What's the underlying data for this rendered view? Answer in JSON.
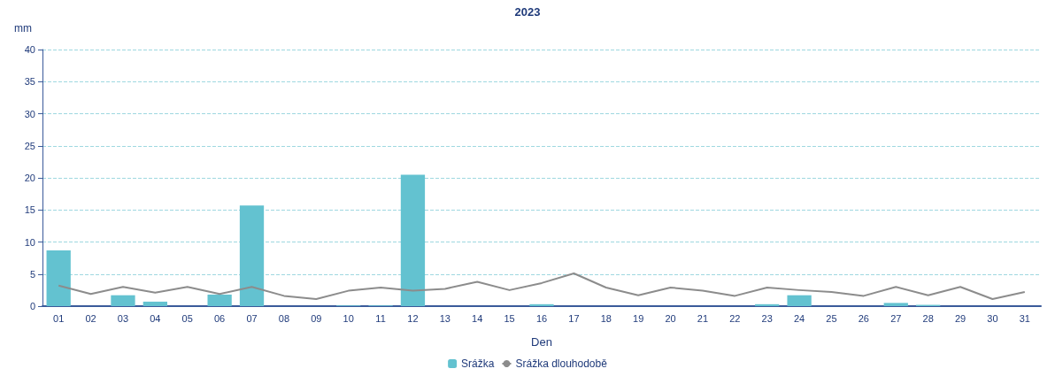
{
  "chart_data": {
    "type": "bar",
    "title": "2023",
    "xlabel": "Den",
    "ylabel": "mm",
    "categories": [
      "01",
      "02",
      "03",
      "04",
      "05",
      "06",
      "07",
      "08",
      "09",
      "10",
      "11",
      "12",
      "13",
      "14",
      "15",
      "16",
      "17",
      "18",
      "19",
      "20",
      "21",
      "22",
      "23",
      "24",
      "25",
      "26",
      "27",
      "28",
      "29",
      "30",
      "31"
    ],
    "series": [
      {
        "name": "Srážka",
        "color": "#63c2d0",
        "values": [
          8.7,
          0,
          1.7,
          0.7,
          0,
          1.8,
          15.7,
          0,
          0,
          0.1,
          0.1,
          20.5,
          0,
          0,
          0,
          0.3,
          0,
          0,
          0,
          0,
          0,
          0,
          0.3,
          1.7,
          0,
          0,
          0.5,
          0.2,
          0,
          0,
          0
        ]
      },
      {
        "name": "Srážka dlouhodobě",
        "type": "line",
        "color": "#8c8c8c",
        "values": [
          3.2,
          1.9,
          3.0,
          2.1,
          3.0,
          1.9,
          3.0,
          1.6,
          1.1,
          2.4,
          2.9,
          2.4,
          2.7,
          3.8,
          2.5,
          3.6,
          5.1,
          2.9,
          1.7,
          2.9,
          2.4,
          1.6,
          2.9,
          2.5,
          2.2,
          1.6,
          3.0,
          1.7,
          3.0,
          1.1,
          2.2
        ]
      }
    ],
    "ylim": [
      0,
      40
    ],
    "yticks": [
      0,
      5,
      10,
      15,
      20,
      25,
      30,
      35,
      40
    ],
    "grid": "y",
    "legend": "bottom",
    "marker": "none",
    "line_style": "solid"
  }
}
